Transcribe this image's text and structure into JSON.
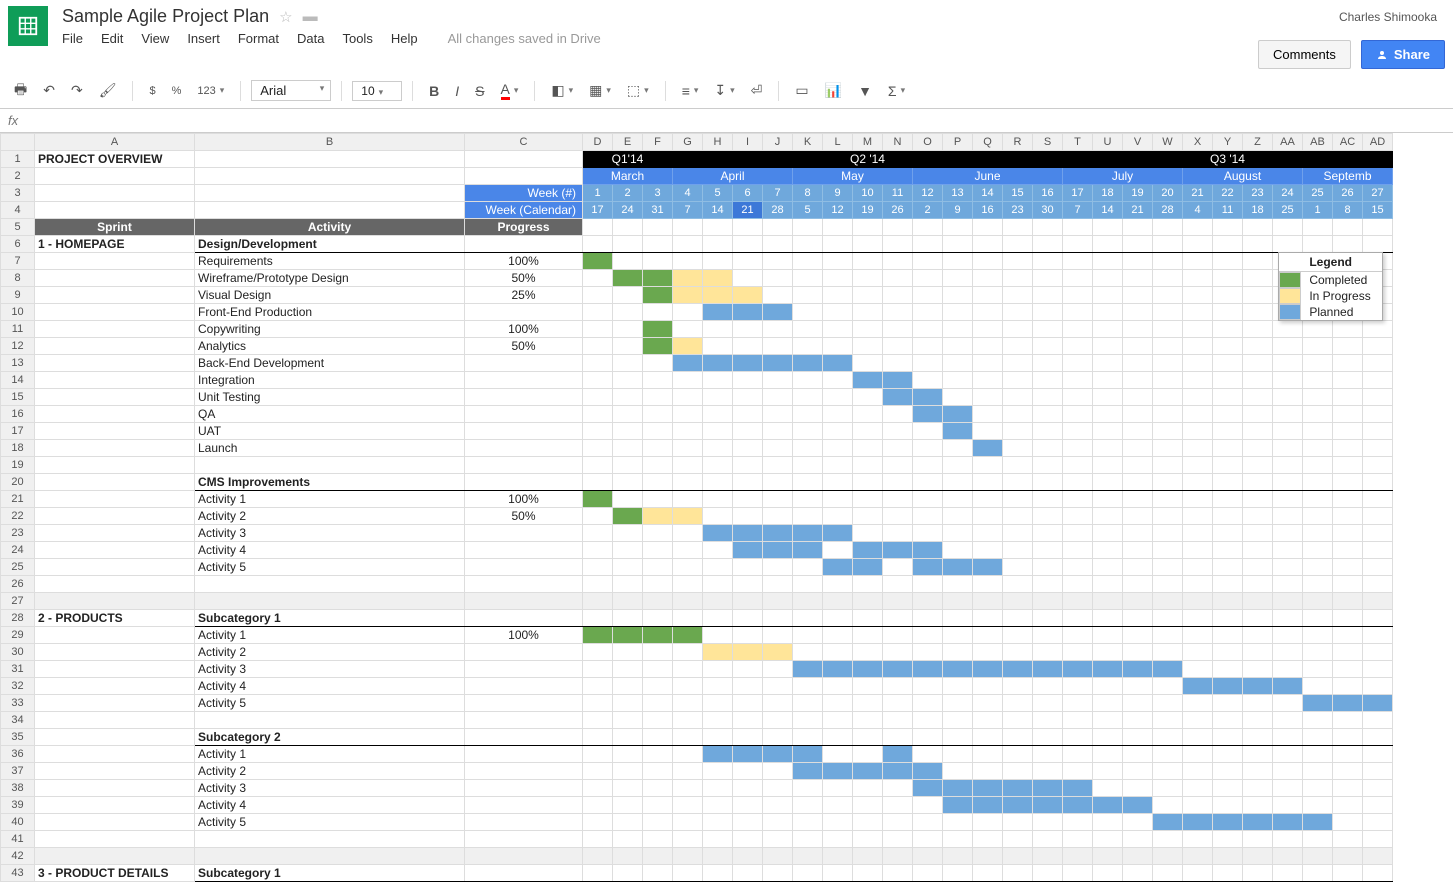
{
  "header": {
    "doc_title": "Sample Agile Project Plan",
    "user": "Charles Shimooka",
    "comments_btn": "Comments",
    "share_btn": "Share",
    "save_status": "All changes saved in Drive",
    "menus": [
      "File",
      "Edit",
      "View",
      "Insert",
      "Format",
      "Data",
      "Tools",
      "Help"
    ]
  },
  "toolbar": {
    "font": "Arial",
    "size": "10",
    "currency": "$",
    "percent": "%",
    "decimals": "123"
  },
  "formula": {
    "fx": "fx"
  },
  "columns": [
    "A",
    "B",
    "C",
    "D",
    "E",
    "F",
    "G",
    "H",
    "I",
    "J",
    "K",
    "L",
    "M",
    "N",
    "O",
    "P",
    "Q",
    "R",
    "S",
    "T",
    "U",
    "V",
    "W",
    "X",
    "Y",
    "Z",
    "AA",
    "AB",
    "AC",
    "AD"
  ],
  "labels": {
    "project_overview": "PROJECT OVERVIEW",
    "week_num_label": "Week (#)",
    "week_cal_label": "Week (Calendar)",
    "sprint": "Sprint",
    "activity": "Activity",
    "progress": "Progress"
  },
  "quarters": [
    {
      "label": "Q1'14",
      "span": 3
    },
    {
      "label": "Q2 '14",
      "span": 13
    },
    {
      "label": "Q3 '14",
      "span": 11
    }
  ],
  "months": [
    {
      "label": "March",
      "span": 3
    },
    {
      "label": "April",
      "span": 4
    },
    {
      "label": "May",
      "span": 4
    },
    {
      "label": "June",
      "span": 5
    },
    {
      "label": "July",
      "span": 4
    },
    {
      "label": "August",
      "span": 4
    },
    {
      "label": "Septemb",
      "span": 3
    }
  ],
  "week_nums": [
    "1",
    "2",
    "3",
    "4",
    "5",
    "6",
    "7",
    "8",
    "9",
    "10",
    "11",
    "12",
    "13",
    "14",
    "15",
    "16",
    "17",
    "18",
    "19",
    "20",
    "21",
    "22",
    "23",
    "24",
    "25",
    "26",
    "27"
  ],
  "week_cal": [
    "17",
    "24",
    "31",
    "7",
    "14",
    "21",
    "28",
    "5",
    "12",
    "19",
    "26",
    "2",
    "9",
    "16",
    "23",
    "30",
    "7",
    "14",
    "21",
    "28",
    "4",
    "11",
    "18",
    "25",
    "1",
    "8",
    "15"
  ],
  "legend": {
    "title": "Legend",
    "items": [
      {
        "color": "#6aa84f",
        "label": "Completed"
      },
      {
        "color": "#ffe599",
        "label": "In Progress"
      },
      {
        "color": "#6fa8dc",
        "label": "Planned"
      }
    ]
  },
  "rows": [
    {
      "n": 6,
      "sprint": "1 - HOMEPAGE",
      "activity": "Design/Development",
      "bold": true,
      "progress": ""
    },
    {
      "n": 7,
      "activity": "Requirements",
      "progress": "100%",
      "bars": [
        {
          "s": 0,
          "e": 1,
          "c": "completed"
        }
      ]
    },
    {
      "n": 8,
      "activity": "Wireframe/Prototype Design",
      "progress": "50%",
      "bars": [
        {
          "s": 1,
          "e": 3,
          "c": "completed"
        },
        {
          "s": 3,
          "e": 5,
          "c": "inprogress"
        }
      ]
    },
    {
      "n": 9,
      "activity": "Visual Design",
      "progress": "25%",
      "bars": [
        {
          "s": 2,
          "e": 3,
          "c": "completed"
        },
        {
          "s": 3,
          "e": 6,
          "c": "inprogress"
        }
      ]
    },
    {
      "n": 10,
      "activity": "Front-End Production",
      "bars": [
        {
          "s": 4,
          "e": 7,
          "c": "planned"
        }
      ]
    },
    {
      "n": 11,
      "activity": "Copywriting",
      "progress": "100%",
      "bars": [
        {
          "s": 2,
          "e": 3,
          "c": "completed"
        }
      ]
    },
    {
      "n": 12,
      "activity": "Analytics",
      "progress": "50%",
      "bars": [
        {
          "s": 2,
          "e": 3,
          "c": "completed"
        },
        {
          "s": 3,
          "e": 4,
          "c": "inprogress"
        }
      ]
    },
    {
      "n": 13,
      "activity": "Back-End Development",
      "bars": [
        {
          "s": 3,
          "e": 9,
          "c": "planned"
        }
      ]
    },
    {
      "n": 14,
      "activity": "Integration",
      "bars": [
        {
          "s": 9,
          "e": 11,
          "c": "planned"
        }
      ]
    },
    {
      "n": 15,
      "activity": "Unit Testing",
      "bars": [
        {
          "s": 10,
          "e": 12,
          "c": "planned"
        }
      ]
    },
    {
      "n": 16,
      "activity": "QA",
      "bars": [
        {
          "s": 11,
          "e": 13,
          "c": "planned"
        }
      ]
    },
    {
      "n": 17,
      "activity": "UAT",
      "bars": [
        {
          "s": 12,
          "e": 13,
          "c": "planned"
        }
      ]
    },
    {
      "n": 18,
      "activity": "Launch",
      "bars": [
        {
          "s": 13,
          "e": 14,
          "c": "planned"
        }
      ]
    },
    {
      "n": 19
    },
    {
      "n": 20,
      "activity": "CMS Improvements",
      "bold": true
    },
    {
      "n": 21,
      "activity": "Activity 1",
      "progress": "100%",
      "bars": [
        {
          "s": 0,
          "e": 1,
          "c": "completed"
        }
      ]
    },
    {
      "n": 22,
      "activity": "Activity 2",
      "progress": "50%",
      "bars": [
        {
          "s": 1,
          "e": 2,
          "c": "completed"
        },
        {
          "s": 2,
          "e": 4,
          "c": "inprogress"
        }
      ]
    },
    {
      "n": 23,
      "activity": "Activity 3",
      "bars": [
        {
          "s": 4,
          "e": 9,
          "c": "planned"
        }
      ]
    },
    {
      "n": 24,
      "activity": "Activity 4",
      "bars": [
        {
          "s": 5,
          "e": 8,
          "c": "planned"
        },
        {
          "s": 9,
          "e": 12,
          "c": "planned"
        }
      ]
    },
    {
      "n": 25,
      "activity": "Activity 5",
      "bars": [
        {
          "s": 8,
          "e": 10,
          "c": "planned"
        },
        {
          "s": 11,
          "e": 14,
          "c": "planned"
        }
      ]
    },
    {
      "n": 26
    },
    {
      "n": 27,
      "empty": true
    },
    {
      "n": 28,
      "sprint": "2 - PRODUCTS",
      "activity": "Subcategory 1",
      "bold": true
    },
    {
      "n": 29,
      "activity": "Activity 1",
      "progress": "100%",
      "bars": [
        {
          "s": 0,
          "e": 4,
          "c": "completed"
        }
      ]
    },
    {
      "n": 30,
      "activity": "Activity 2",
      "bars": [
        {
          "s": 4,
          "e": 7,
          "c": "inprogress"
        }
      ]
    },
    {
      "n": 31,
      "activity": "Activity 3",
      "bars": [
        {
          "s": 7,
          "e": 20,
          "c": "planned"
        }
      ]
    },
    {
      "n": 32,
      "activity": "Activity 4",
      "bars": [
        {
          "s": 20,
          "e": 24,
          "c": "planned"
        }
      ]
    },
    {
      "n": 33,
      "activity": "Activity 5",
      "bars": [
        {
          "s": 24,
          "e": 27,
          "c": "planned"
        }
      ]
    },
    {
      "n": 34
    },
    {
      "n": 35,
      "activity": "Subcategory 2",
      "bold": true
    },
    {
      "n": 36,
      "activity": "Activity 1",
      "bars": [
        {
          "s": 4,
          "e": 8,
          "c": "planned"
        },
        {
          "s": 10,
          "e": 11,
          "c": "planned"
        }
      ]
    },
    {
      "n": 37,
      "activity": "Activity 2",
      "bars": [
        {
          "s": 7,
          "e": 12,
          "c": "planned"
        }
      ]
    },
    {
      "n": 38,
      "activity": "Activity 3",
      "bars": [
        {
          "s": 11,
          "e": 17,
          "c": "planned"
        }
      ]
    },
    {
      "n": 39,
      "activity": "Activity 4",
      "bars": [
        {
          "s": 12,
          "e": 19,
          "c": "planned"
        }
      ]
    },
    {
      "n": 40,
      "activity": "Activity 5",
      "bars": [
        {
          "s": 19,
          "e": 25,
          "c": "planned"
        }
      ]
    },
    {
      "n": 41
    },
    {
      "n": 42,
      "empty": true
    },
    {
      "n": 43,
      "sprint": "3 - PRODUCT DETAILS",
      "activity": "Subcategory 1",
      "bold": true
    }
  ],
  "weeks_count": 27,
  "redline_at": 3,
  "colors": {
    "completed": "#6aa84f",
    "inprogress": "#ffe599",
    "planned": "#6fa8dc"
  }
}
